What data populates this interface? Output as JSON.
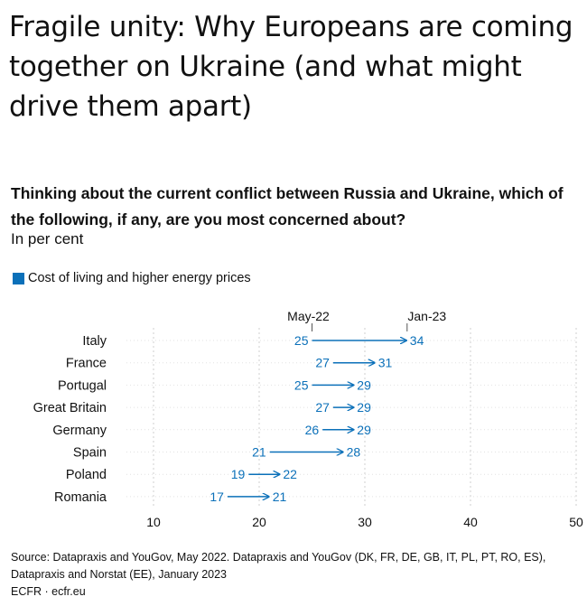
{
  "header": {
    "title": "Fragile unity: Why Europeans are coming together on Ukraine (and what might drive them apart)"
  },
  "chart_data": {
    "type": "dumbbell-arrow",
    "question": "Thinking about the current conflict between Russia and Ukraine, which of the following, if any, are you most concerned about?",
    "unit": "In per cent",
    "legend": "Cost of living and higher energy prices",
    "series_labels": {
      "start": "May-22",
      "end": "Jan-23"
    },
    "categories": [
      "Italy",
      "France",
      "Portugal",
      "Great Britain",
      "Germany",
      "Spain",
      "Poland",
      "Romania"
    ],
    "start_values": [
      25,
      27,
      25,
      27,
      26,
      21,
      19,
      17
    ],
    "end_values": [
      34,
      31,
      29,
      29,
      29,
      28,
      22,
      21
    ],
    "xlim": [
      10,
      50
    ],
    "xticks": [
      10,
      20,
      30,
      40,
      50
    ],
    "grid": true,
    "color": "#0b70b9"
  },
  "source": "Source: Datapraxis and YouGov, May 2022. Datapraxis and YouGov (DK, FR, DE, GB, IT, PL, PT, RO, ES), Datapraxis and Norstat (EE), January 2023",
  "footer": "ECFR · ecfr.eu"
}
